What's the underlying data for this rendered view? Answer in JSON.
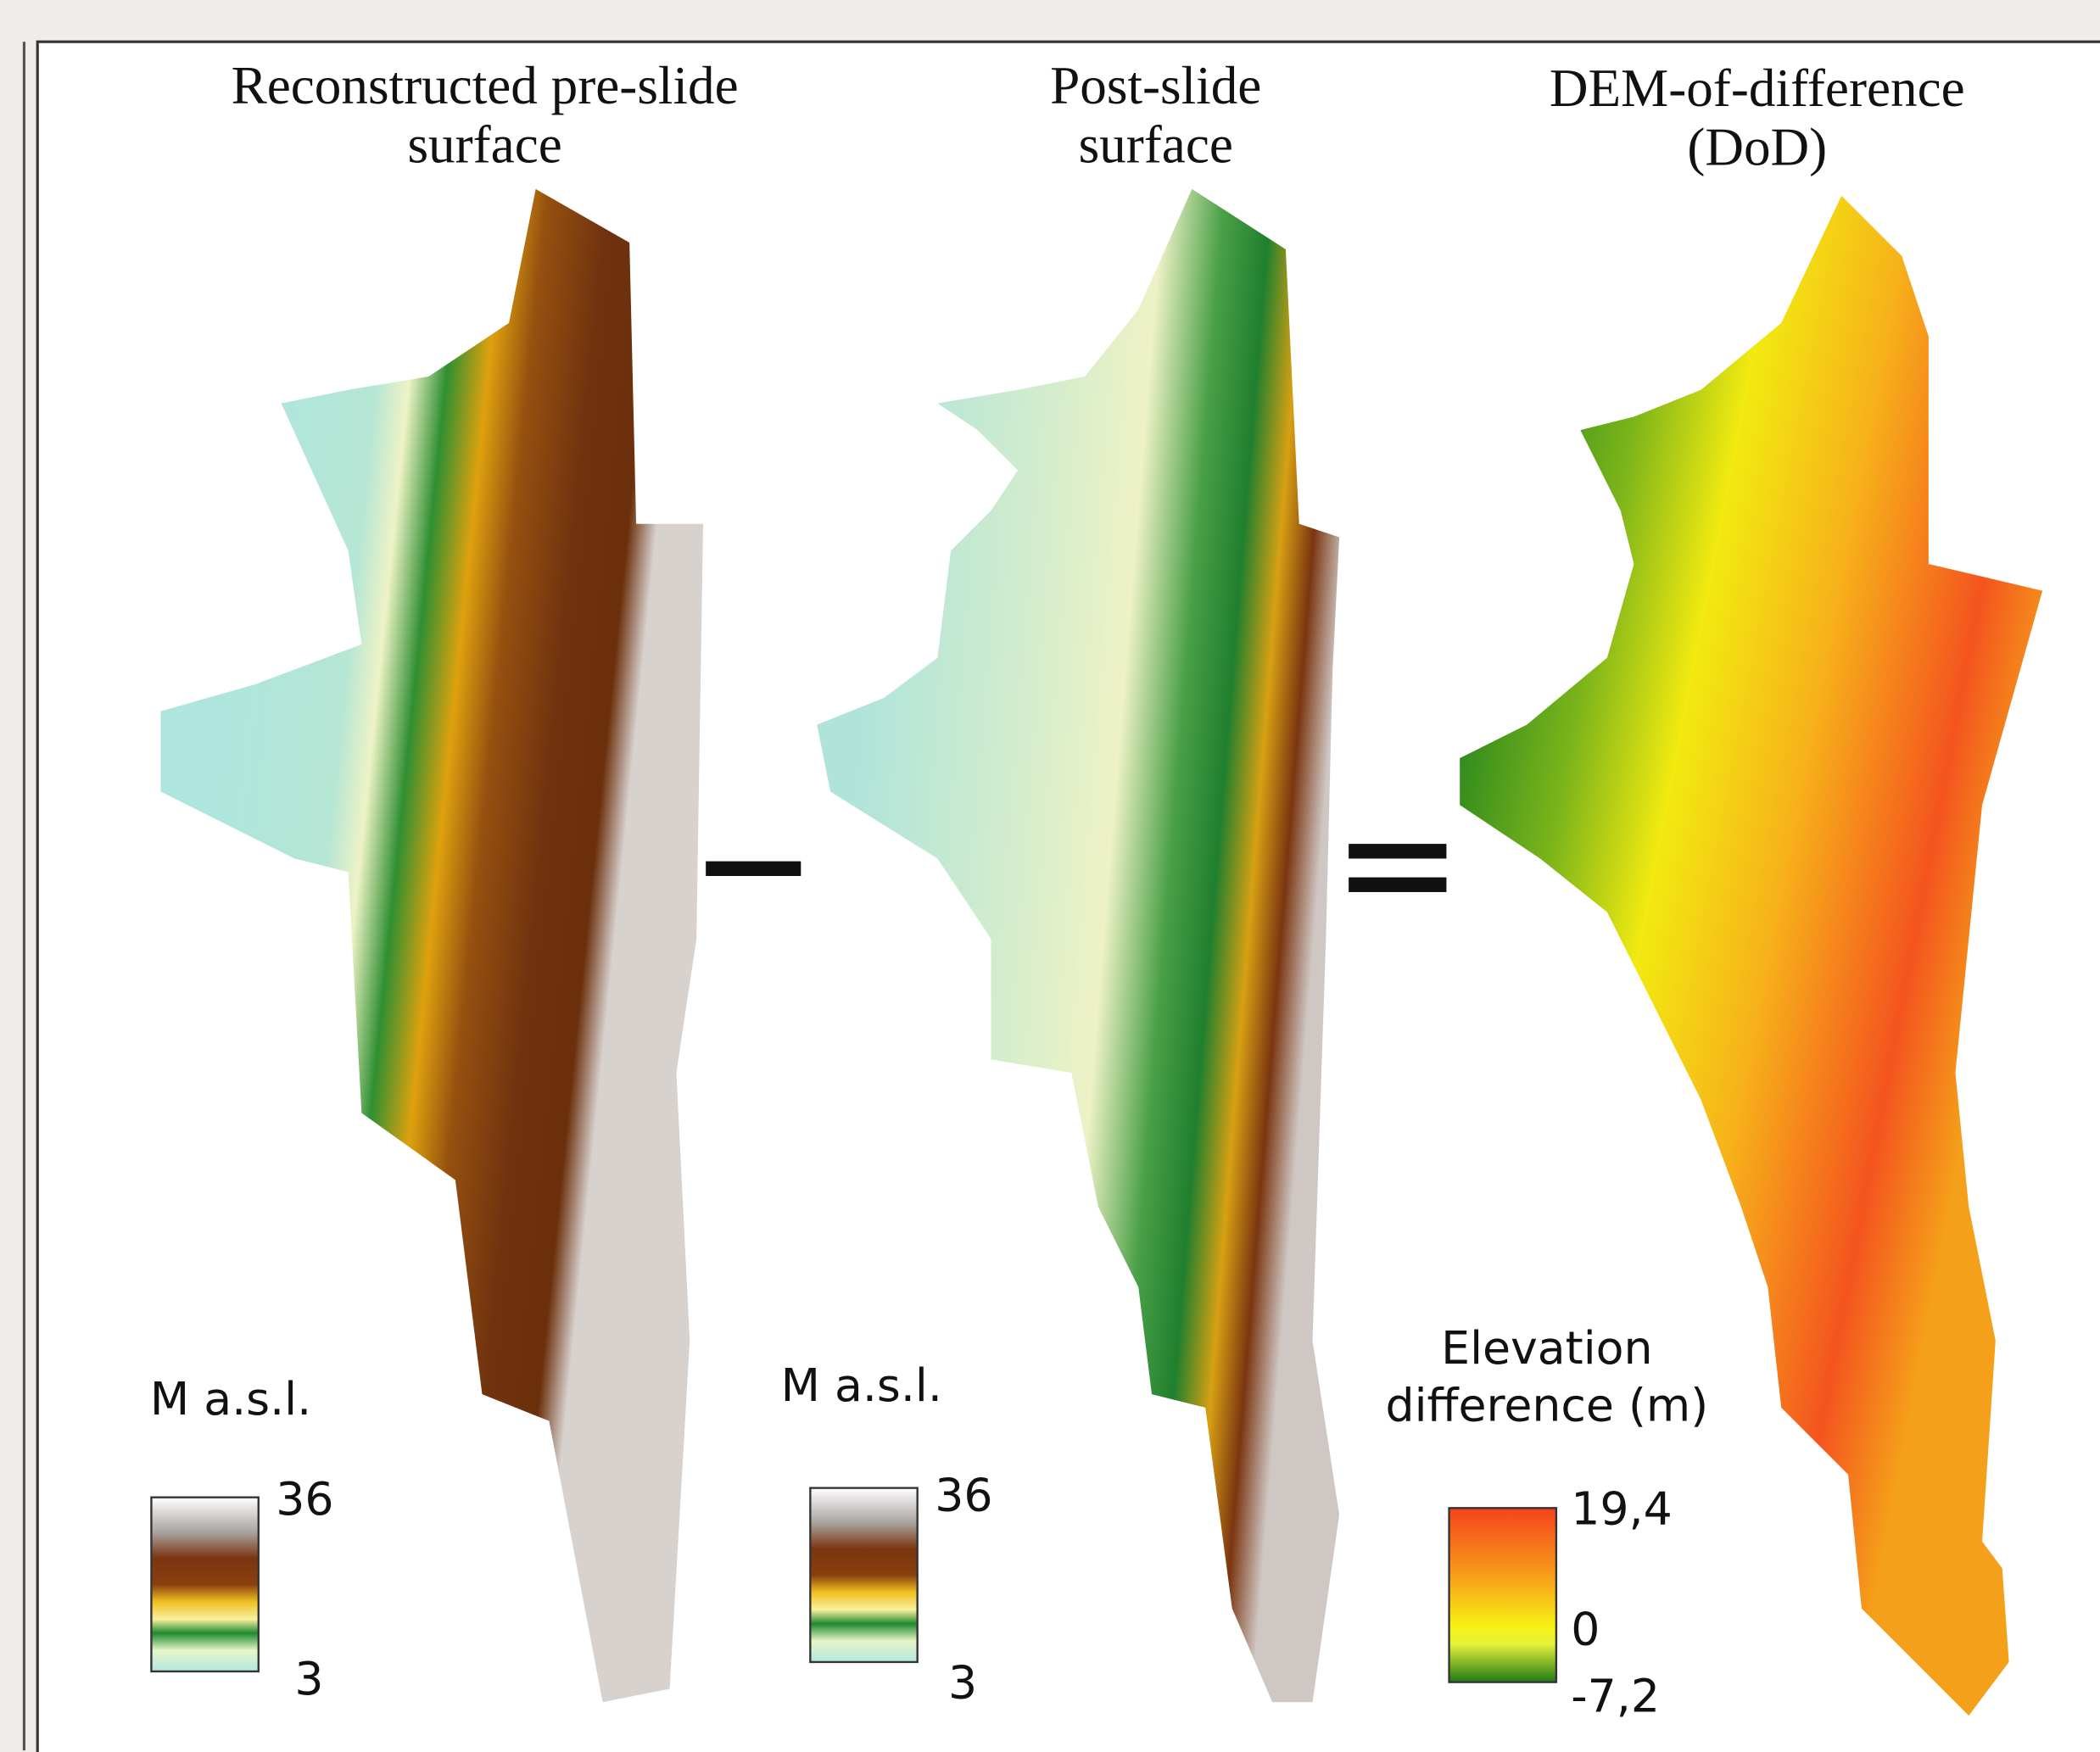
{
  "panels": [
    {
      "title": [
        "Reconstructed pre-slide",
        "surface"
      ],
      "legend": {
        "title": [
          "M a.s.l."
        ],
        "labels": [
          "36",
          "3"
        ]
      }
    },
    {
      "title": [
        "Post-slide",
        "surface"
      ],
      "legend": {
        "title": [
          "M a.s.l."
        ],
        "labels": [
          "36",
          "3"
        ]
      }
    },
    {
      "title": [
        "DEM-of-difference",
        "(DoD)"
      ],
      "legend": {
        "title": [
          "Elevation",
          "difference (m)"
        ],
        "labels": [
          "19,4",
          "0",
          "-7,2"
        ]
      }
    }
  ]
}
